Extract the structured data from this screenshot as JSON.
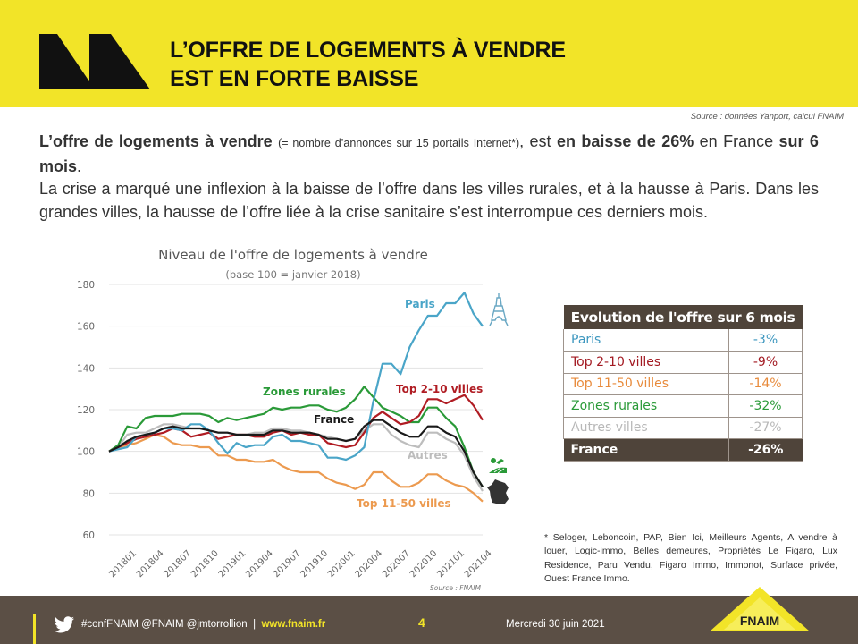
{
  "header": {
    "title_line1": "L’OFFRE DE LOGEMENTS À VENDRE",
    "title_line2": "EST EN FORTE BAISSE"
  },
  "source_top": "Source : données Yanport, calcul FNAIM",
  "intro": {
    "p1_a": "L’offre de logements à vendre",
    "p1_b": "(= nombre d’annonces sur 15 portails Internet*)",
    "p1_c": ", est",
    "p1_d": "en baisse de 26%",
    "p1_e": "en France",
    "p1_f": "sur 6 mois",
    "p1_g": ".",
    "p2": "La crise a marqué une inflexion à la baisse de l’offre dans les villes rurales, et à la hausse à Paris. Dans les grandes villes, la hausse de l’offre liée à la crise sanitaire s’est interrompue ces derniers mois."
  },
  "chart_data": {
    "type": "line",
    "title": "Niveau de l'offre de logements à vendre",
    "subtitle": "(base 100 = janvier 2018)",
    "source": "Source : FNAIM",
    "ylim": [
      60,
      180
    ],
    "yticks": [
      60,
      80,
      100,
      120,
      140,
      160,
      180
    ],
    "x": [
      "201801",
      "201802",
      "201803",
      "201804",
      "201805",
      "201806",
      "201807",
      "201808",
      "201809",
      "201810",
      "201811",
      "201812",
      "201901",
      "201902",
      "201903",
      "201904",
      "201905",
      "201906",
      "201907",
      "201908",
      "201909",
      "201910",
      "201911",
      "201912",
      "202001",
      "202002",
      "202003",
      "202004",
      "202005",
      "202006",
      "202007",
      "202008",
      "202009",
      "202010",
      "202011",
      "202012",
      "202101",
      "202102",
      "202103",
      "202104",
      "202105",
      "202106"
    ],
    "xtick_labels": [
      "201801",
      "201804",
      "201807",
      "201810",
      "201901",
      "201904",
      "201907",
      "201910",
      "202001",
      "202004",
      "202007",
      "202010",
      "202101",
      "202104"
    ],
    "series": [
      {
        "name": "Paris",
        "color": "#4aa5c8",
        "values": [
          100,
          101,
          102,
          107,
          108,
          109,
          111,
          111,
          110,
          113,
          113,
          110,
          104,
          99,
          104,
          102,
          103,
          103,
          107,
          108,
          105,
          105,
          104,
          103,
          97,
          97,
          96,
          98,
          102,
          124,
          142,
          142,
          137,
          150,
          158,
          165,
          165,
          171,
          171,
          176,
          166,
          160
        ]
      },
      {
        "name": "Top 2-10 villes",
        "color": "#b01c23",
        "values": [
          100,
          102,
          104,
          106,
          107,
          108,
          109,
          111,
          110,
          107,
          108,
          109,
          106,
          107,
          108,
          108,
          107,
          107,
          109,
          110,
          108,
          109,
          108,
          108,
          104,
          103,
          102,
          103,
          109,
          116,
          119,
          116,
          113,
          114,
          117,
          125,
          125,
          123,
          125,
          127,
          122,
          115
        ]
      },
      {
        "name": "Zones rurales",
        "color": "#2a9a38",
        "values": [
          100,
          103,
          112,
          111,
          116,
          117,
          117,
          117,
          118,
          118,
          118,
          117,
          114,
          116,
          115,
          116,
          117,
          118,
          121,
          120,
          121,
          121,
          122,
          122,
          120,
          119,
          121,
          125,
          131,
          126,
          121,
          119,
          117,
          114,
          114,
          121,
          121,
          116,
          112,
          102,
          90,
          83
        ]
      },
      {
        "name": "France",
        "color": "#1a1a1a",
        "values": [
          100,
          102,
          105,
          107,
          108,
          109,
          111,
          112,
          111,
          111,
          111,
          110,
          109,
          109,
          108,
          108,
          108,
          108,
          110,
          110,
          109,
          109,
          109,
          108,
          106,
          106,
          105,
          106,
          112,
          115,
          115,
          112,
          109,
          107,
          107,
          112,
          112,
          109,
          107,
          100,
          90,
          83
        ]
      },
      {
        "name": "Autres",
        "color": "#bdbdbd",
        "values": [
          100,
          102,
          108,
          109,
          109,
          111,
          113,
          113,
          112,
          111,
          111,
          110,
          109,
          109,
          108,
          108,
          109,
          109,
          111,
          111,
          110,
          110,
          109,
          108,
          107,
          106,
          105,
          106,
          110,
          113,
          113,
          108,
          105,
          103,
          102,
          109,
          109,
          106,
          104,
          98,
          88,
          81
        ]
      },
      {
        "name": "Top 11-50 villes",
        "color": "#ec9a4f",
        "values": [
          100,
          102,
          103,
          104,
          106,
          108,
          107,
          104,
          103,
          103,
          102,
          102,
          98,
          98,
          96,
          96,
          95,
          95,
          96,
          93,
          91,
          90,
          90,
          90,
          87,
          85,
          84,
          82,
          84,
          90,
          90,
          86,
          83,
          83,
          85,
          89,
          89,
          86,
          84,
          83,
          80,
          76
        ]
      }
    ]
  },
  "table": {
    "header": "Evolution de l'offre sur 6 mois",
    "rows": [
      {
        "label": "Paris",
        "value": "-3%",
        "color": "#3d97bf"
      },
      {
        "label": "Top 2-10 villes",
        "value": "-9%",
        "color": "#a31a22"
      },
      {
        "label": "Top 11-50 villes",
        "value": "-14%",
        "color": "#e88b3c"
      },
      {
        "label": "Zones rurales",
        "value": "-32%",
        "color": "#2a9a38"
      },
      {
        "label": "Autres villes",
        "value": "-27%",
        "color": "#b8b8b8"
      },
      {
        "label": "France",
        "value": "-26%",
        "color": "#ffffff"
      }
    ]
  },
  "footnote": "* Seloger, Leboncoin, PAP, Bien Ici, Meilleurs Agents, A vendre à louer, Logic-immo, Belles demeures, Propriétés Le Figaro, Lux Residence, Paru Vendu, Figaro Immo, Immonot, Surface privée, Ouest France Immo.",
  "footer": {
    "social": "#confFNAIM @FNAIM @jmtorrollion",
    "separator": "|",
    "website": "www.fnaim.fr",
    "page": "4",
    "date": "Mercredi 30 juin 2021",
    "logo_text": "FNAIM"
  },
  "colors": {
    "brand_yellow": "#f2e428",
    "brand_brown": "#5b4f45"
  },
  "icons": [
    "twitter-icon",
    "eiffel-tower-icon",
    "field-icon",
    "france-map-icon"
  ]
}
